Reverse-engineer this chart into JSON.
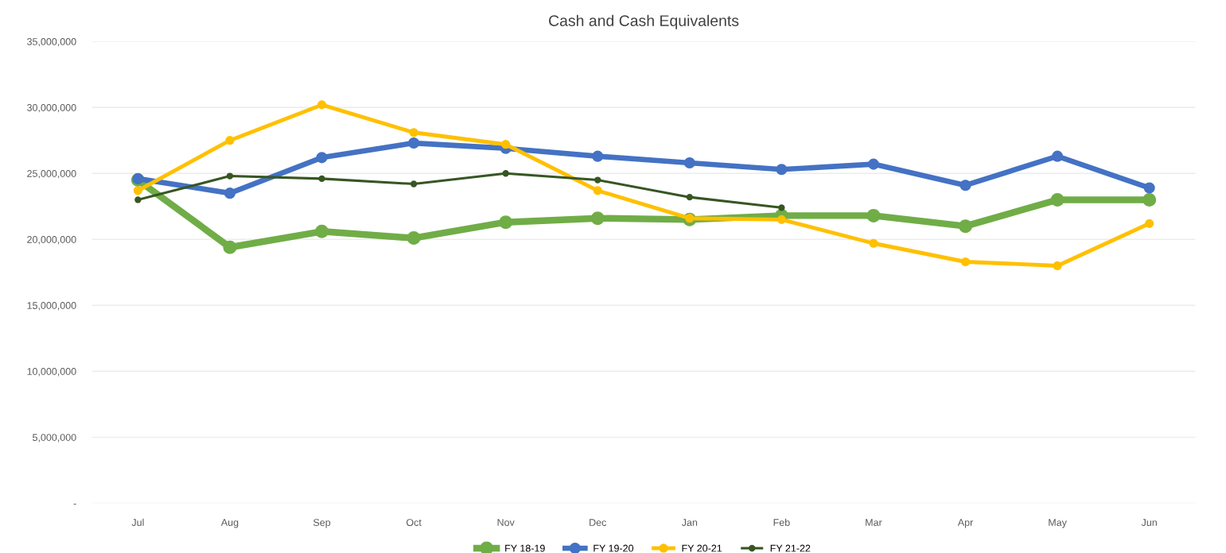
{
  "chart_data": {
    "type": "line",
    "title": "Cash and Cash Equivalents",
    "categories": [
      "Jul",
      "Aug",
      "Sep",
      "Oct",
      "Nov",
      "Dec",
      "Jan",
      "Feb",
      "Mar",
      "Apr",
      "May",
      "Jun"
    ],
    "series": [
      {
        "name": "FY 18-19",
        "color": "#70ad47",
        "values": [
          24500000,
          19400000,
          20600000,
          20100000,
          21300000,
          21600000,
          21500000,
          21800000,
          21800000,
          21000000,
          23000000,
          23000000
        ]
      },
      {
        "name": "FY 19-20",
        "color": "#4472c4",
        "values": [
          24600000,
          23500000,
          26200000,
          27300000,
          26900000,
          26300000,
          25800000,
          25300000,
          25700000,
          24100000,
          26300000,
          23900000
        ]
      },
      {
        "name": "FY 20-21",
        "color": "#ffc000",
        "values": [
          23700000,
          27500000,
          30200000,
          28100000,
          27200000,
          23700000,
          21600000,
          21500000,
          19700000,
          18300000,
          18000000,
          21200000
        ]
      },
      {
        "name": "FY 21-22",
        "color": "#375623",
        "values": [
          23000000,
          24800000,
          24600000,
          24200000,
          25000000,
          24500000,
          23200000,
          22400000,
          null,
          null,
          null,
          null
        ]
      }
    ],
    "ylim": [
      0,
      35000000
    ],
    "yticks": [
      {
        "value": 0,
        "label": "-"
      },
      {
        "value": 5000000,
        "label": "5,000,000"
      },
      {
        "value": 10000000,
        "label": "10,000,000"
      },
      {
        "value": 15000000,
        "label": "15,000,000"
      },
      {
        "value": 20000000,
        "label": "20,000,000"
      },
      {
        "value": 25000000,
        "label": "25,000,000"
      },
      {
        "value": 30000000,
        "label": "30,000,000"
      },
      {
        "value": 35000000,
        "label": "35,000,000"
      }
    ],
    "grid": "y",
    "legend": "bottom",
    "marker": "circle",
    "line_style": "solid"
  }
}
